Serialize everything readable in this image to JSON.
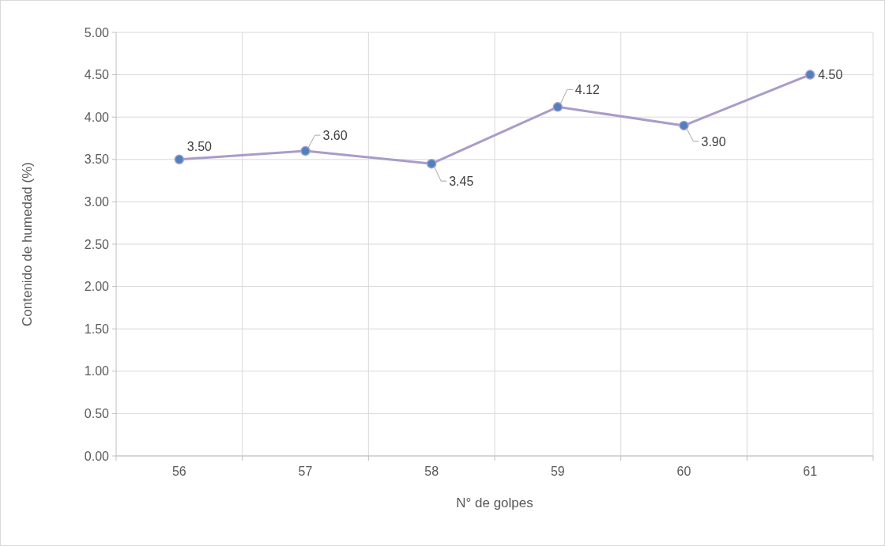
{
  "chart_data": {
    "type": "line",
    "xlabel": "N° de golpes",
    "ylabel": "Contenido de humedad (%)",
    "categories": [
      "56",
      "57",
      "58",
      "59",
      "60",
      "61"
    ],
    "series": [
      {
        "color": "#a99cc9",
        "values": [
          3.5,
          3.6,
          3.45,
          4.12,
          3.9,
          4.5
        ],
        "value_labels": [
          "3.50",
          "3.60",
          "3.45",
          "4.12",
          "3.90",
          "4.50"
        ]
      }
    ],
    "ylim": [
      0,
      5
    ],
    "yticks": [
      {
        "value": 0,
        "label": "0.00"
      },
      {
        "value": 0.5,
        "label": "0.50"
      },
      {
        "value": 1,
        "label": "1.00"
      },
      {
        "value": 1.5,
        "label": "1.50"
      },
      {
        "value": 2,
        "label": "2.00"
      },
      {
        "value": 2.5,
        "label": "2.50"
      },
      {
        "value": 3,
        "label": "3.00"
      },
      {
        "value": 3.5,
        "label": "3.50"
      },
      {
        "value": 4,
        "label": "4.00"
      },
      {
        "value": 4.5,
        "label": "4.50"
      },
      {
        "value": 5,
        "label": "5.00"
      }
    ],
    "grid": true,
    "marker": "circle"
  }
}
